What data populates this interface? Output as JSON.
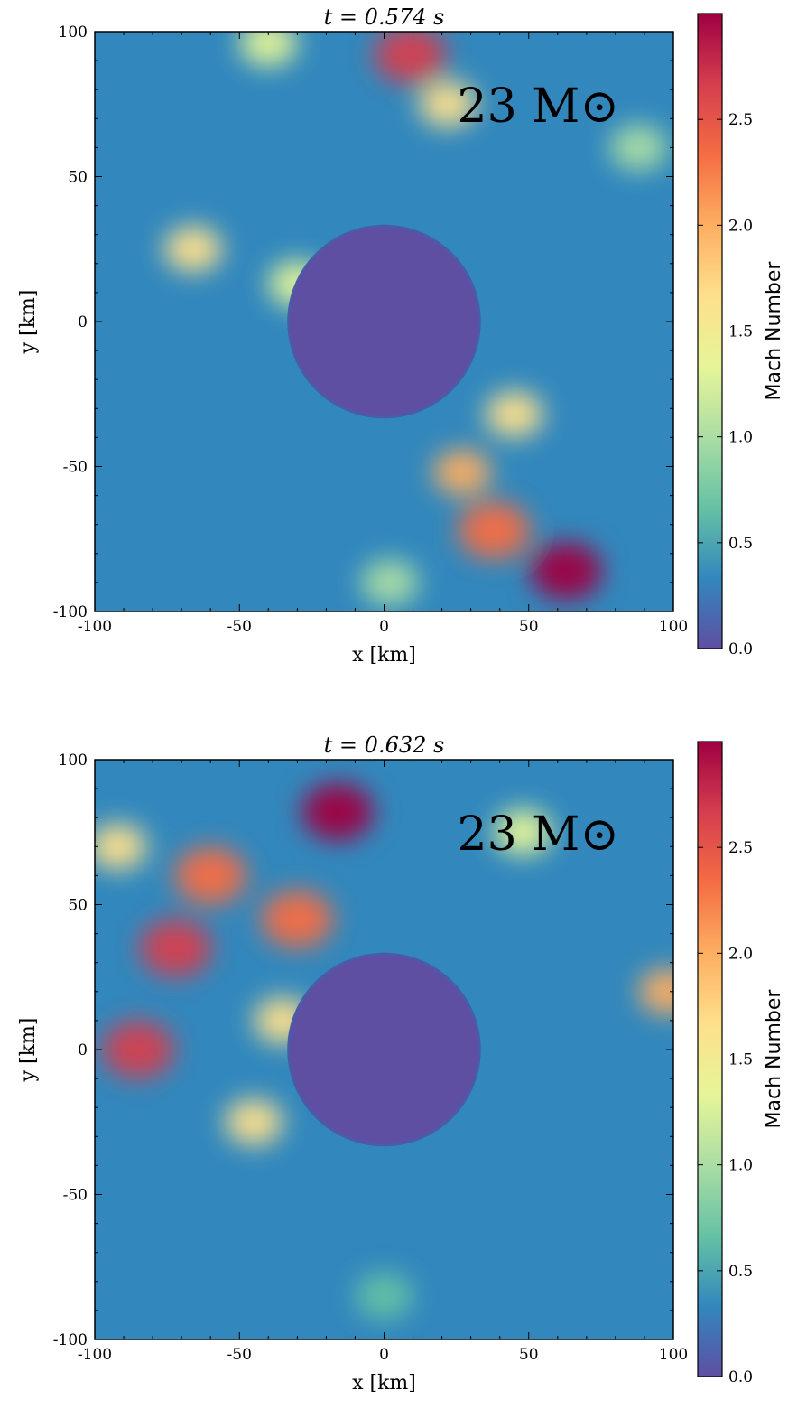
{
  "chart_data": [
    {
      "type": "heatmap",
      "title": "t = 0.574 s",
      "xlabel": "x [km]",
      "ylabel": "y [km]",
      "xlim": [
        -100,
        100
      ],
      "ylim": [
        -100,
        100
      ],
      "xticks": [
        "-100",
        "-50",
        "0",
        "50",
        "100"
      ],
      "yticks": [
        "-100",
        "-50",
        "0",
        "50",
        "100"
      ],
      "annotation": "23 M⊙",
      "colorbar": {
        "label": "Mach Number",
        "range": [
          0.0,
          3.0
        ],
        "ticks": [
          "0.0",
          "0.5",
          "1.0",
          "1.5",
          "2.0",
          "2.5"
        ],
        "colormap": [
          "#5e4fa2",
          "#3288bd",
          "#66c2a5",
          "#abdda4",
          "#e6f598",
          "#fee08b",
          "#fdae61",
          "#f46d43",
          "#d53e4f",
          "#9e0142"
        ]
      },
      "features": [
        {
          "x": 0,
          "y": 0,
          "radius": 33,
          "mach": 0.1
        },
        {
          "x": 63,
          "y": -86,
          "mach": 2.9
        },
        {
          "x": 38,
          "y": -72,
          "mach": 2.3
        },
        {
          "x": 27,
          "y": -52,
          "mach": 2.0
        },
        {
          "x": 45,
          "y": -32,
          "mach": 1.6
        },
        {
          "x": 22,
          "y": 75,
          "mach": 1.7
        },
        {
          "x": 9,
          "y": 92,
          "mach": 2.5
        },
        {
          "x": -40,
          "y": 96,
          "mach": 1.4
        },
        {
          "x": -66,
          "y": 25,
          "mach": 1.5
        },
        {
          "x": -30,
          "y": 13,
          "mach": 1.2
        },
        {
          "x": 2,
          "y": -90,
          "mach": 1.1
        },
        {
          "x": 88,
          "y": 60,
          "mach": 0.9
        }
      ]
    },
    {
      "type": "heatmap",
      "title": "t = 0.632 s",
      "xlabel": "x [km]",
      "ylabel": "y [km]",
      "xlim": [
        -100,
        100
      ],
      "ylim": [
        -100,
        100
      ],
      "xticks": [
        "-100",
        "-50",
        "0",
        "50",
        "100"
      ],
      "yticks": [
        "-100",
        "-50",
        "0",
        "50",
        "100"
      ],
      "annotation": "23 M⊙",
      "colorbar": {
        "label": "Mach Number",
        "range": [
          0.0,
          3.0
        ],
        "ticks": [
          "0.0",
          "0.5",
          "1.0",
          "1.5",
          "2.0",
          "2.5"
        ],
        "colormap": [
          "#5e4fa2",
          "#3288bd",
          "#66c2a5",
          "#abdda4",
          "#e6f598",
          "#fee08b",
          "#fdae61",
          "#f46d43",
          "#d53e4f",
          "#9e0142"
        ]
      },
      "features": [
        {
          "x": 0,
          "y": 0,
          "radius": 33,
          "mach": 0.1
        },
        {
          "x": -72,
          "y": 35,
          "mach": 2.6
        },
        {
          "x": -85,
          "y": 0,
          "mach": 2.5
        },
        {
          "x": -60,
          "y": 60,
          "mach": 2.3
        },
        {
          "x": -30,
          "y": 45,
          "mach": 2.4
        },
        {
          "x": -16,
          "y": 82,
          "mach": 2.9
        },
        {
          "x": -35,
          "y": 10,
          "mach": 1.7
        },
        {
          "x": -45,
          "y": -25,
          "mach": 1.5
        },
        {
          "x": -92,
          "y": 70,
          "mach": 1.6
        },
        {
          "x": 48,
          "y": 75,
          "mach": 1.3
        },
        {
          "x": 98,
          "y": 20,
          "mach": 2.0
        },
        {
          "x": 0,
          "y": -85,
          "mach": 0.7
        }
      ]
    }
  ]
}
